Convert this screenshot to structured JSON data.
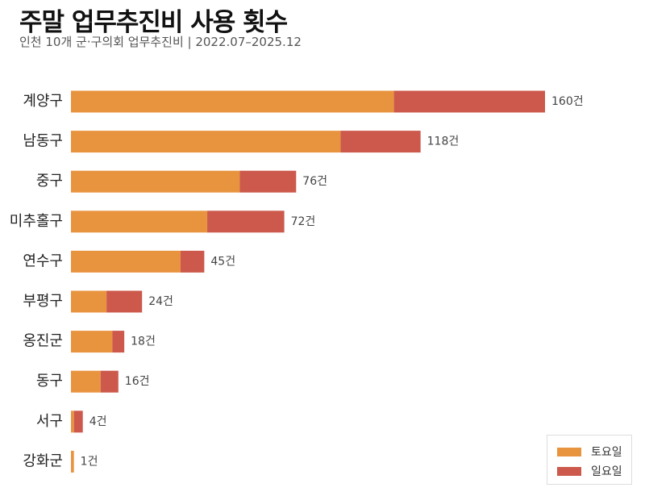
{
  "title": "주말 업무추진비 사용 횟수",
  "subtitle": "인천 10개 군·구의회 업무추진비 | 2022.07–2025.12",
  "colors": {
    "saturday": "#E8943F",
    "sunday": "#CC594C"
  },
  "chart_data": {
    "type": "bar",
    "orientation": "horizontal",
    "stacked": true,
    "title": "주말 업무추진비 사용 횟수",
    "subtitle": "인천 10개 군·구의회 업무추진비 | 2022.07–2025.12",
    "categories": [
      "계양구",
      "남동구",
      "중구",
      "미추홀구",
      "연수구",
      "부평구",
      "옹진군",
      "동구",
      "서구",
      "강화군"
    ],
    "series": [
      {
        "name": "토요일",
        "values": [
          109,
          91,
          57,
          46,
          37,
          12,
          14,
          10,
          1,
          1
        ]
      },
      {
        "name": "일요일",
        "values": [
          51,
          27,
          19,
          26,
          8,
          12,
          4,
          6,
          3,
          0
        ]
      }
    ],
    "totals": [
      160,
      118,
      76,
      72,
      45,
      24,
      18,
      16,
      4,
      1
    ],
    "total_labels": [
      "160건",
      "118건",
      "76건",
      "72건",
      "45건",
      "24건",
      "18건",
      "16건",
      "4건",
      "1건"
    ],
    "xlim": [
      0,
      160
    ],
    "grid": false,
    "legend_position": "bottom-right"
  },
  "legend": [
    {
      "label": "토요일"
    },
    {
      "label": "일요일"
    }
  ]
}
